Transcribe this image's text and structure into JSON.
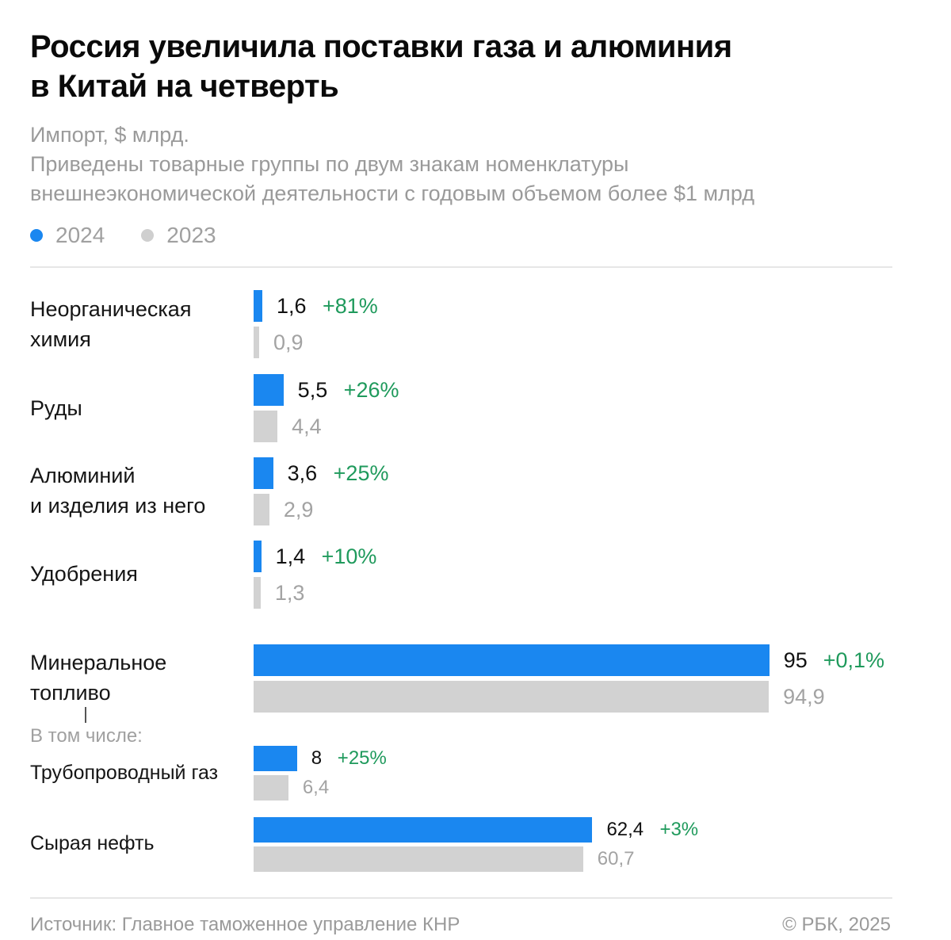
{
  "header": {
    "title_lines": [
      "Россия увеличила поставки газа и алюминия",
      "в Китай на четверть"
    ],
    "subtitle_lines": [
      "Импорт, $ млрд.",
      "Приведены товарные группы по двум знакам номенклатуры",
      "внешнеэкономической деятельности с годовым объемом более $1 млрд"
    ]
  },
  "legend": [
    {
      "label": "2024",
      "color": "#1a87f0"
    },
    {
      "label": "2023",
      "color": "#cfcfcf"
    }
  ],
  "colors": {
    "bar_2024": "#1a87f0",
    "bar_2023": "#d2d2d2",
    "change": "#1f9a5c"
  },
  "subgroup_note": "В том числе:",
  "chart_data": {
    "type": "bar",
    "orientation": "horizontal",
    "title": "Россия увеличила поставки газа и алюминия в Китай на четверть",
    "subtitle": "Импорт, $ млрд.",
    "categories": [
      "Неорганическая химия",
      "Руды",
      "Алюминий и изделия из него",
      "Удобрения",
      "Минеральное топливо",
      "Трубопроводный газ",
      "Сырая нефть"
    ],
    "series": [
      {
        "name": "2024",
        "values": [
          1.6,
          5.5,
          3.6,
          1.4,
          95,
          8,
          62.4
        ]
      },
      {
        "name": "2023",
        "values": [
          0.9,
          4.4,
          2.9,
          1.3,
          94.9,
          6.4,
          60.7
        ]
      }
    ],
    "rows": [
      {
        "label_lines": [
          "Неорганическая",
          "химия"
        ],
        "v2024": 1.6,
        "v2023": 0.9,
        "t2024": "1,6",
        "t2023": "0,9",
        "change": "+81%"
      },
      {
        "label_lines": [
          "Руды"
        ],
        "v2024": 5.5,
        "v2023": 4.4,
        "t2024": "5,5",
        "t2023": "4,4",
        "change": "+26%"
      },
      {
        "label_lines": [
          "Алюминий",
          "и изделия из него"
        ],
        "v2024": 3.6,
        "v2023": 2.9,
        "t2024": "3,6",
        "t2023": "2,9",
        "change": "+25%"
      },
      {
        "label_lines": [
          "Удобрения"
        ],
        "v2024": 1.4,
        "v2023": 1.3,
        "t2024": "1,4",
        "t2023": "1,3",
        "change": "+10%"
      },
      {
        "label_lines": [
          "Минеральное",
          "топливо"
        ],
        "v2024": 95,
        "v2023": 94.9,
        "t2024": "95",
        "t2023": "94,9",
        "change": "+0,1%"
      },
      {
        "label_lines": [
          "Трубопроводный газ"
        ],
        "v2024": 8,
        "v2023": 6.4,
        "t2024": "8",
        "t2023": "6,4",
        "change": "+25%"
      },
      {
        "label_lines": [
          "Сырая нефть"
        ],
        "v2024": 62.4,
        "v2023": 60.7,
        "t2024": "62,4",
        "t2023": "60,7",
        "change": "+3%"
      }
    ],
    "legend_position": "top-left",
    "grid": false
  },
  "footer": {
    "source": "Источник: Главное таможенное управление КНР",
    "copyright": "© РБК, 2025"
  }
}
